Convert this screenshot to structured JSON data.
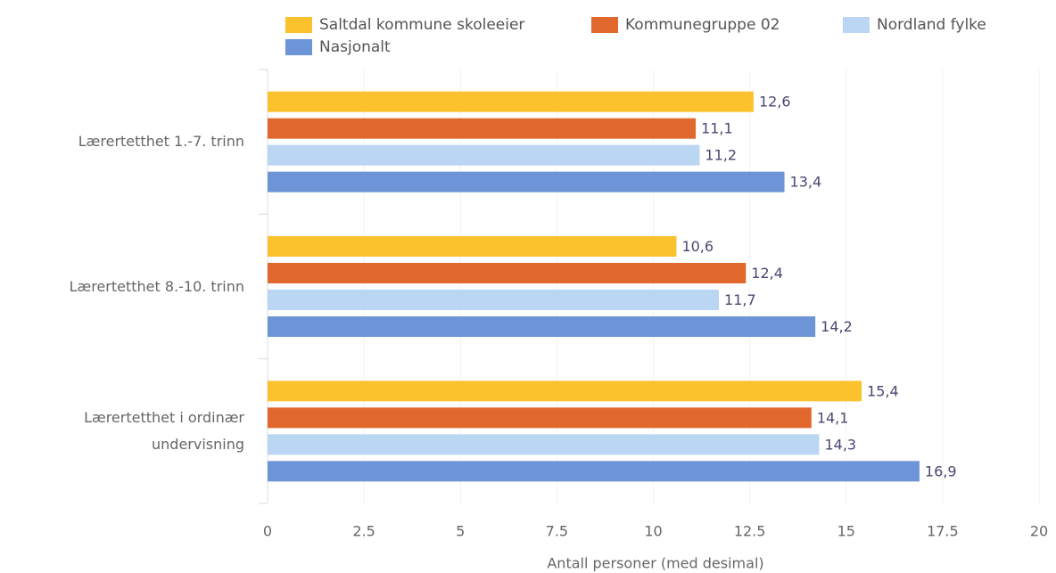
{
  "chart_data": {
    "type": "hbar",
    "categories": [
      "Lærertetthet 1.-7. trinn",
      "Lærertetthet 8.-10. trinn",
      "Lærertetthet i ordinær undervisning"
    ],
    "series": [
      {
        "name": "Saltdal kommune skoleeier",
        "color": "#fcc22d",
        "values": [
          12.6,
          10.6,
          15.4
        ],
        "value_labels": [
          "12,6",
          "10,6",
          "15,4"
        ]
      },
      {
        "name": "Kommunegruppe 02",
        "color": "#e0682c",
        "values": [
          11.1,
          12.4,
          14.1
        ],
        "value_labels": [
          "11,1",
          "12,4",
          "14,1"
        ]
      },
      {
        "name": "Nordland fylke",
        "color": "#bad6f2",
        "values": [
          11.2,
          11.7,
          14.3
        ],
        "value_labels": [
          "11,2",
          "11,7",
          "14,3"
        ]
      },
      {
        "name": "Nasjonalt",
        "color": "#6c94d6",
        "values": [
          13.4,
          14.2,
          16.9
        ],
        "value_labels": [
          "13,4",
          "14,2",
          "16,9"
        ]
      }
    ],
    "xlabel": "Antall personer (med desimal)",
    "xlim": [
      0,
      20
    ],
    "xticks": [
      0,
      2.5,
      5,
      7.5,
      10,
      12.5,
      15,
      17.5,
      20
    ],
    "grid": true
  }
}
